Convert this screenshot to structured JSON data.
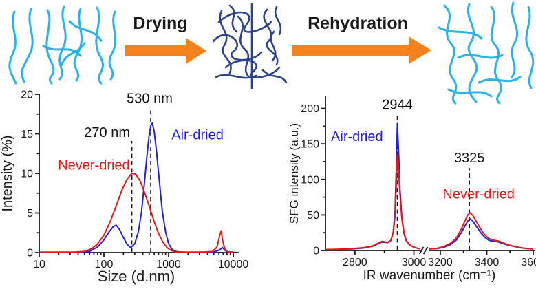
{
  "scheme": {
    "drying_label": "Drying",
    "rehydration_label": "Rehydration",
    "colors": {
      "fibril_cyan": "#29b2f0",
      "fibril_navy": "#2a4391",
      "arrow_orange": "#f5821f",
      "curve_red": "#f01414",
      "curve_blue": "#2020dd",
      "axis_black": "#1a1a1a"
    }
  },
  "chart_data": [
    {
      "type": "line",
      "xlabel": "Size (d.nm)",
      "ylabel": "Intensity (%)",
      "x_scale": "log",
      "xlim": [
        10,
        10000
      ],
      "ylim": [
        0,
        20
      ],
      "x_ticks": [
        10,
        100,
        1000,
        10000
      ],
      "y_ticks": [
        0,
        5,
        10,
        15,
        20
      ],
      "y_minor_step": 2.5,
      "grid": false,
      "legend_position": "inline-labels",
      "annotations": [
        {
          "label": "270 nm",
          "line_x": 270,
          "line_top": 14.1,
          "label_x": 112,
          "label_y": 14.6
        },
        {
          "label": "530 nm",
          "line_x": 530,
          "line_top": 18.4,
          "label_x": 510,
          "label_y": 18.9
        }
      ],
      "series": [
        {
          "name": "Air-dried",
          "color": "#2020dd",
          "label_pos": {
            "x": 2800,
            "y": 14.3
          },
          "points": [
            [
              10,
              0.05
            ],
            [
              40,
              0.05
            ],
            [
              60,
              0.15
            ],
            [
              80,
              0.7
            ],
            [
              100,
              1.6
            ],
            [
              120,
              2.6
            ],
            [
              140,
              3.3
            ],
            [
              155,
              3.45
            ],
            [
              175,
              2.9
            ],
            [
              200,
              1.9
            ],
            [
              230,
              1.0
            ],
            [
              260,
              0.62
            ],
            [
              300,
              1.1
            ],
            [
              340,
              2.6
            ],
            [
              380,
              5.0
            ],
            [
              420,
              8.5
            ],
            [
              460,
              12.0
            ],
            [
              500,
              14.8
            ],
            [
              530,
              16.0
            ],
            [
              560,
              16.35
            ],
            [
              600,
              15.3
            ],
            [
              650,
              12.8
            ],
            [
              720,
              9.0
            ],
            [
              800,
              5.2
            ],
            [
              900,
              2.6
            ],
            [
              1000,
              1.1
            ],
            [
              1150,
              0.35
            ],
            [
              1350,
              0.1
            ],
            [
              1800,
              0.05
            ],
            [
              3000,
              0.05
            ],
            [
              5000,
              0.08
            ],
            [
              6200,
              0.35
            ],
            [
              6800,
              0.65
            ],
            [
              7400,
              0.3
            ],
            [
              8200,
              0.08
            ],
            [
              10000,
              0.05
            ]
          ]
        },
        {
          "name": "Never-dried",
          "color": "#f01414",
          "label_pos": {
            "x": 70,
            "y": 10.5
          },
          "points": [
            [
              10,
              0.05
            ],
            [
              35,
              0.05
            ],
            [
              50,
              0.15
            ],
            [
              65,
              0.5
            ],
            [
              80,
              1.1
            ],
            [
              100,
              2.2
            ],
            [
              125,
              3.9
            ],
            [
              155,
              5.9
            ],
            [
              190,
              7.9
            ],
            [
              230,
              9.3
            ],
            [
              270,
              10.0
            ],
            [
              310,
              9.9
            ],
            [
              360,
              9.1
            ],
            [
              420,
              7.7
            ],
            [
              500,
              5.9
            ],
            [
              600,
              3.9
            ],
            [
              700,
              2.4
            ],
            [
              820,
              1.3
            ],
            [
              950,
              0.6
            ],
            [
              1100,
              0.25
            ],
            [
              1300,
              0.08
            ],
            [
              1800,
              0.05
            ],
            [
              3500,
              0.05
            ],
            [
              4800,
              0.15
            ],
            [
              5600,
              0.7
            ],
            [
              6200,
              2.2
            ],
            [
              6500,
              2.75
            ],
            [
              6900,
              1.4
            ],
            [
              7400,
              0.45
            ],
            [
              8200,
              0.1
            ],
            [
              10000,
              0.05
            ]
          ]
        }
      ]
    },
    {
      "type": "line",
      "xlabel": "IR wavenumber (cm⁻¹)",
      "ylabel": "SFG intensity (a.u.)",
      "x_scale": "broken-linear",
      "x_segments": [
        {
          "xlim": [
            2700,
            3020
          ],
          "span": [
            0,
            0.454
          ]
        },
        {
          "xlim": [
            3150,
            3600
          ],
          "span": [
            0.497,
            1
          ]
        }
      ],
      "ylim": [
        0,
        217
      ],
      "x_ticks": [
        2800,
        3000,
        3200,
        3400,
        3600
      ],
      "x_minor_ticks": [
        2900,
        3300,
        3500
      ],
      "y_ticks": [
        0,
        50,
        100,
        150,
        200
      ],
      "y_minor_step": 25,
      "grid": false,
      "legend_position": "inline-labels",
      "annotations": [
        {
          "label": "2944",
          "line_x": 2944,
          "line_top": 191,
          "label_x": 2944,
          "label_y": 199
        },
        {
          "label": "3325",
          "line_x": 3325,
          "line_top": 116,
          "label_x": 3325,
          "label_y": 124
        }
      ],
      "series": [
        {
          "name": "Air-dried",
          "color": "#2020dd",
          "label_pos": {
            "x": 2807,
            "y": 154
          },
          "points": [
            [
              2700,
              1.2
            ],
            [
              2745,
              1.5
            ],
            [
              2790,
              2.2
            ],
            [
              2830,
              3.5
            ],
            [
              2860,
              6
            ],
            [
              2878,
              9.5
            ],
            [
              2892,
              12
            ],
            [
              2902,
              11.5
            ],
            [
              2912,
              11
            ],
            [
              2922,
              14
            ],
            [
              2930,
              26
            ],
            [
              2936,
              55
            ],
            [
              2940,
              110
            ],
            [
              2944,
              178
            ],
            [
              2948,
              140
            ],
            [
              2953,
              85
            ],
            [
              2959,
              48
            ],
            [
              2966,
              26
            ],
            [
              2974,
              14
            ],
            [
              2984,
              8.5
            ],
            [
              2996,
              5.5
            ],
            [
              3008,
              3.5
            ],
            [
              3020,
              2.5
            ],
            [
              3150,
              2
            ],
            [
              3185,
              2.6
            ],
            [
              3215,
              4.5
            ],
            [
              3245,
              8.5
            ],
            [
              3270,
              15
            ],
            [
              3290,
              25
            ],
            [
              3305,
              34
            ],
            [
              3318,
              41.5
            ],
            [
              3328,
              44.5
            ],
            [
              3340,
              41.5
            ],
            [
              3355,
              34
            ],
            [
              3372,
              26
            ],
            [
              3390,
              19
            ],
            [
              3408,
              14.5
            ],
            [
              3428,
              12.8
            ],
            [
              3448,
              12.2
            ],
            [
              3468,
              10
            ],
            [
              3492,
              7.5
            ],
            [
              3520,
              5.5
            ],
            [
              3552,
              3.5
            ],
            [
              3580,
              2.5
            ],
            [
              3600,
              2.2
            ]
          ]
        },
        {
          "name": "Never-dried",
          "color": "#f01414",
          "label_pos": {
            "x": 3365,
            "y": 73
          },
          "points": [
            [
              2700,
              1.4
            ],
            [
              2745,
              1.8
            ],
            [
              2790,
              2.6
            ],
            [
              2830,
              4
            ],
            [
              2860,
              6.5
            ],
            [
              2878,
              10
            ],
            [
              2892,
              13
            ],
            [
              2902,
              12
            ],
            [
              2912,
              11.5
            ],
            [
              2922,
              14.5
            ],
            [
              2930,
              25
            ],
            [
              2936,
              48
            ],
            [
              2940,
              90
            ],
            [
              2944,
              135
            ],
            [
              2948,
              112
            ],
            [
              2953,
              78
            ],
            [
              2959,
              45
            ],
            [
              2966,
              24
            ],
            [
              2974,
              13.5
            ],
            [
              2984,
              8
            ],
            [
              2996,
              5.5
            ],
            [
              3008,
              3.5
            ],
            [
              3020,
              2.5
            ],
            [
              3150,
              2.2
            ],
            [
              3185,
              3
            ],
            [
              3215,
              5.5
            ],
            [
              3245,
              10.5
            ],
            [
              3270,
              18
            ],
            [
              3290,
              30
            ],
            [
              3305,
              41
            ],
            [
              3318,
              50
            ],
            [
              3328,
              53
            ],
            [
              3340,
              49.5
            ],
            [
              3355,
              41
            ],
            [
              3372,
              31
            ],
            [
              3390,
              22.5
            ],
            [
              3408,
              17
            ],
            [
              3428,
              14.5
            ],
            [
              3448,
              13.5
            ],
            [
              3468,
              11
            ],
            [
              3492,
              8
            ],
            [
              3520,
              5.5
            ],
            [
              3552,
              3.5
            ],
            [
              3580,
              2.5
            ],
            [
              3600,
              2.2
            ]
          ]
        }
      ]
    }
  ]
}
